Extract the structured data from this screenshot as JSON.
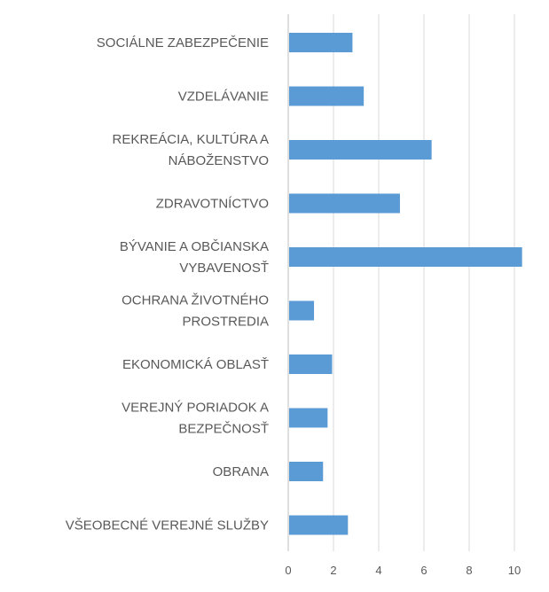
{
  "chart_data": {
    "type": "bar",
    "orientation": "horizontal",
    "title": "",
    "xlabel": "",
    "ylabel": "",
    "xlim": [
      0,
      10
    ],
    "xticks": [
      "0",
      "2",
      "4",
      "6",
      "8",
      "10"
    ],
    "grid": true,
    "legend": "none",
    "bar_color": "#5b9bd5",
    "categories": [
      {
        "lines": [
          "SOCIÁLNE ZABEZPEČENIE"
        ]
      },
      {
        "lines": [
          "VZDELÁVANIE"
        ]
      },
      {
        "lines": [
          "REKREÁCIA, KULTÚRA A",
          "NÁBOŽENSTVO"
        ]
      },
      {
        "lines": [
          "ZDRAVOTNÍCTVO"
        ]
      },
      {
        "lines": [
          "BÝVANIE A OBČIANSKA",
          "VYBAVENOSŤ"
        ]
      },
      {
        "lines": [
          "OCHRANA ŽIVOTNÉHO",
          "PROSTREDIA"
        ]
      },
      {
        "lines": [
          "EKONOMICKÁ OBLASŤ"
        ]
      },
      {
        "lines": [
          "VEREJNÝ PORIADOK A",
          "BEZPEČNOSŤ"
        ]
      },
      {
        "lines": [
          "OBRANA"
        ]
      },
      {
        "lines": [
          "VŠEOBECNÉ VEREJNÉ SLUŽBY"
        ]
      }
    ],
    "values": [
      2.8,
      3.3,
      6.3,
      4.9,
      10.3,
      1.1,
      1.9,
      1.7,
      1.5,
      2.6
    ]
  }
}
